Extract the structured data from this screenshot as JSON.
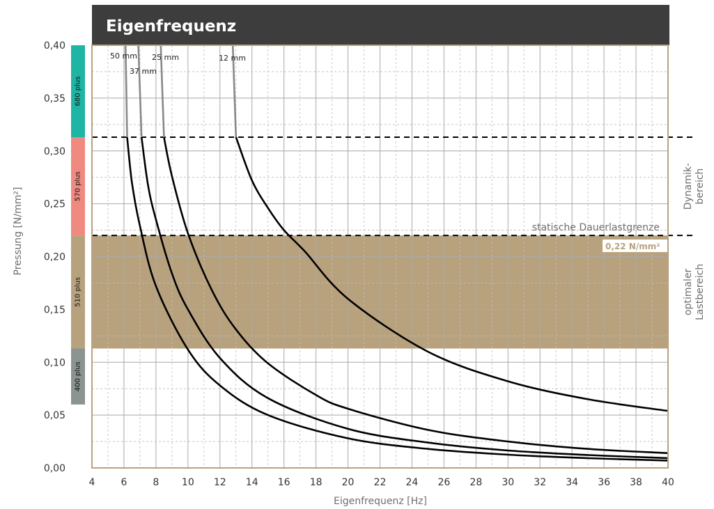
{
  "chart_data": {
    "type": "line",
    "title": "Eigenfrequenz",
    "xlabel": "Eigenfrequenz [Hz]",
    "ylabel": "Pressung [N/mm²]",
    "xlim": [
      4,
      40
    ],
    "ylim": [
      0,
      0.4
    ],
    "x_ticks": [
      "4",
      "6",
      "8",
      "10",
      "12",
      "14",
      "16",
      "18",
      "20",
      "22",
      "24",
      "26",
      "28",
      "30",
      "32",
      "34",
      "36",
      "38",
      "40"
    ],
    "y_ticks": [
      "0,00",
      "0,05",
      "0,10",
      "0,15",
      "0,20",
      "0,25",
      "0,30",
      "0,35",
      "0,40"
    ],
    "grid": true,
    "series": [
      {
        "name": "50 mm",
        "x": [
          6.1,
          6.2,
          6.5,
          7,
          8,
          10,
          12,
          15,
          20,
          25,
          30,
          35,
          40
        ],
        "y": [
          0.4,
          0.313,
          0.27,
          0.229,
          0.172,
          0.112,
          0.078,
          0.05,
          0.028,
          0.018,
          0.0125,
          0.0092,
          0.007
        ]
      },
      {
        "name": "37 mm",
        "x": [
          6.9,
          7.1,
          7.5,
          8,
          9,
          10,
          12,
          15,
          20,
          25,
          30,
          35,
          40
        ],
        "y": [
          0.4,
          0.313,
          0.268,
          0.235,
          0.184,
          0.15,
          0.104,
          0.066,
          0.037,
          0.024,
          0.0165,
          0.0122,
          0.0093
        ]
      },
      {
        "name": "25 mm",
        "x": [
          8.3,
          8.5,
          9,
          10,
          11.5,
          13,
          15,
          18,
          20,
          25,
          30,
          35,
          40
        ],
        "y": [
          0.4,
          0.313,
          0.276,
          0.222,
          0.168,
          0.131,
          0.099,
          0.069,
          0.056,
          0.036,
          0.025,
          0.018,
          0.014
        ]
      },
      {
        "name": "12 mm",
        "x": [
          12.8,
          13,
          14,
          15,
          16,
          17.3,
          20,
          25,
          30,
          35,
          40
        ],
        "y": [
          0.4,
          0.313,
          0.272,
          0.246,
          0.225,
          0.205,
          0.16,
          0.11,
          0.082,
          0.065,
          0.054
        ]
      }
    ],
    "reference_lines": [
      {
        "y": 0.313,
        "style": "dashed"
      },
      {
        "y": 0.22,
        "style": "dashed",
        "label": "statische Dauerlastgrenze"
      }
    ],
    "optimal_range": {
      "y_from": 0.113,
      "y_to": 0.22,
      "color": "#b8a27e",
      "value_label": "0,22 N/mm²"
    },
    "zone_labels": [
      {
        "lines": [
          "Dynamik-",
          "bereich"
        ],
        "y_from": 0.22,
        "y_to": 0.313
      },
      {
        "lines": [
          "optimaler",
          "Lastbereich"
        ],
        "y_from": 0.113,
        "y_to": 0.22
      }
    ],
    "material_bands": [
      {
        "label": "680 plus",
        "y_from": 0.313,
        "y_to": 0.4,
        "color": "#1eb5a5"
      },
      {
        "label": "570 plus",
        "y_from": 0.22,
        "y_to": 0.313,
        "color": "#ef8a80"
      },
      {
        "label": "510 plus",
        "y_from": 0.113,
        "y_to": 0.22,
        "color": "#b8a27e"
      },
      {
        "label": "400 plus",
        "y_from": 0.06,
        "y_to": 0.113,
        "color": "#8c948f"
      }
    ],
    "colors": {
      "title_bar": "#3d3d3d",
      "frame": "#b8a27e",
      "curve": "#000000",
      "curve_top": "#888888"
    }
  }
}
